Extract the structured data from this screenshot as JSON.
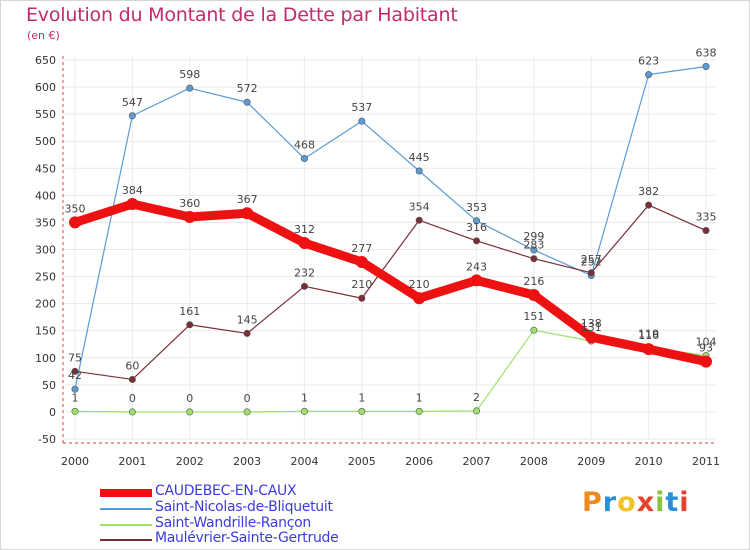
{
  "title": "Evolution du Montant de la Dette par Habitant",
  "unit": "(en €)",
  "brand_letters": [
    "P",
    "r",
    "o",
    "x",
    "i",
    "t",
    "i"
  ],
  "chart_data": {
    "type": "line",
    "title": "Evolution du Montant de la Dette par Habitant",
    "subtitle": "(en €)",
    "xlabel": "",
    "ylabel": "",
    "ylim": [
      -50,
      650
    ],
    "yticks": [
      -50,
      0,
      50,
      100,
      150,
      200,
      250,
      300,
      350,
      400,
      450,
      500,
      550,
      600,
      650
    ],
    "ytick_labels": [
      "-50",
      "0",
      "50",
      "100",
      "150",
      "200",
      "250",
      "300",
      "350",
      "400",
      "450",
      "500",
      "550",
      "600",
      "650"
    ],
    "x": [
      "2000",
      "2001",
      "2002",
      "2003",
      "2004",
      "2005",
      "2006",
      "2007",
      "2008",
      "2009",
      "2010",
      "2011"
    ],
    "grid": true,
    "legend_position": "bottom-left",
    "series": [
      {
        "name": "Saint-Nicolas-de-Bliquetuit",
        "color": "#5b9bd5",
        "values": [
          42,
          547,
          598,
          572,
          468,
          537,
          445,
          353,
          299,
          252,
          623,
          638
        ],
        "labels": [
          "42",
          "547",
          "598",
          "572",
          "468",
          "537",
          "445",
          "353",
          "299",
          "252",
          "623",
          "638"
        ]
      },
      {
        "name": "Maulévrier-Sainte-Gertrude",
        "color": "#7a2e36",
        "values": [
          75,
          60,
          161,
          145,
          232,
          210,
          354,
          316,
          283,
          257,
          382,
          335
        ],
        "labels": [
          "75",
          "60",
          "161",
          "145",
          "232",
          "210",
          "354",
          "316",
          "283",
          "257",
          "382",
          "335"
        ]
      },
      {
        "name": "Saint-Wandrille-Rançon",
        "color": "#9ee06a",
        "values": [
          1,
          0,
          0,
          0,
          1,
          1,
          1,
          2,
          151,
          131,
          119,
          104
        ],
        "labels": [
          "1",
          "0",
          "0",
          "0",
          "1",
          "1",
          "1",
          "2",
          "151",
          "131",
          "119",
          "104"
        ]
      },
      {
        "name": "CAUDEBEC-EN-CAUX",
        "color": "#ee1111",
        "values": [
          350,
          384,
          360,
          367,
          312,
          277,
          210,
          243,
          216,
          138,
          116,
          93
        ],
        "labels": [
          "350",
          "384",
          "360",
          "367",
          "312",
          "277",
          "210",
          "243",
          "216",
          "138",
          "116",
          "93"
        ]
      }
    ],
    "legend": [
      {
        "name": "CAUDEBEC-EN-CAUX",
        "color": "#ee1111"
      },
      {
        "name": "Saint-Nicolas-de-Bliquetuit",
        "color": "#5b9bd5"
      },
      {
        "name": "Saint-Wandrille-Rançon",
        "color": "#9ee06a"
      },
      {
        "name": "Maulévrier-Sainte-Gertrude",
        "color": "#7a2e36"
      }
    ]
  }
}
